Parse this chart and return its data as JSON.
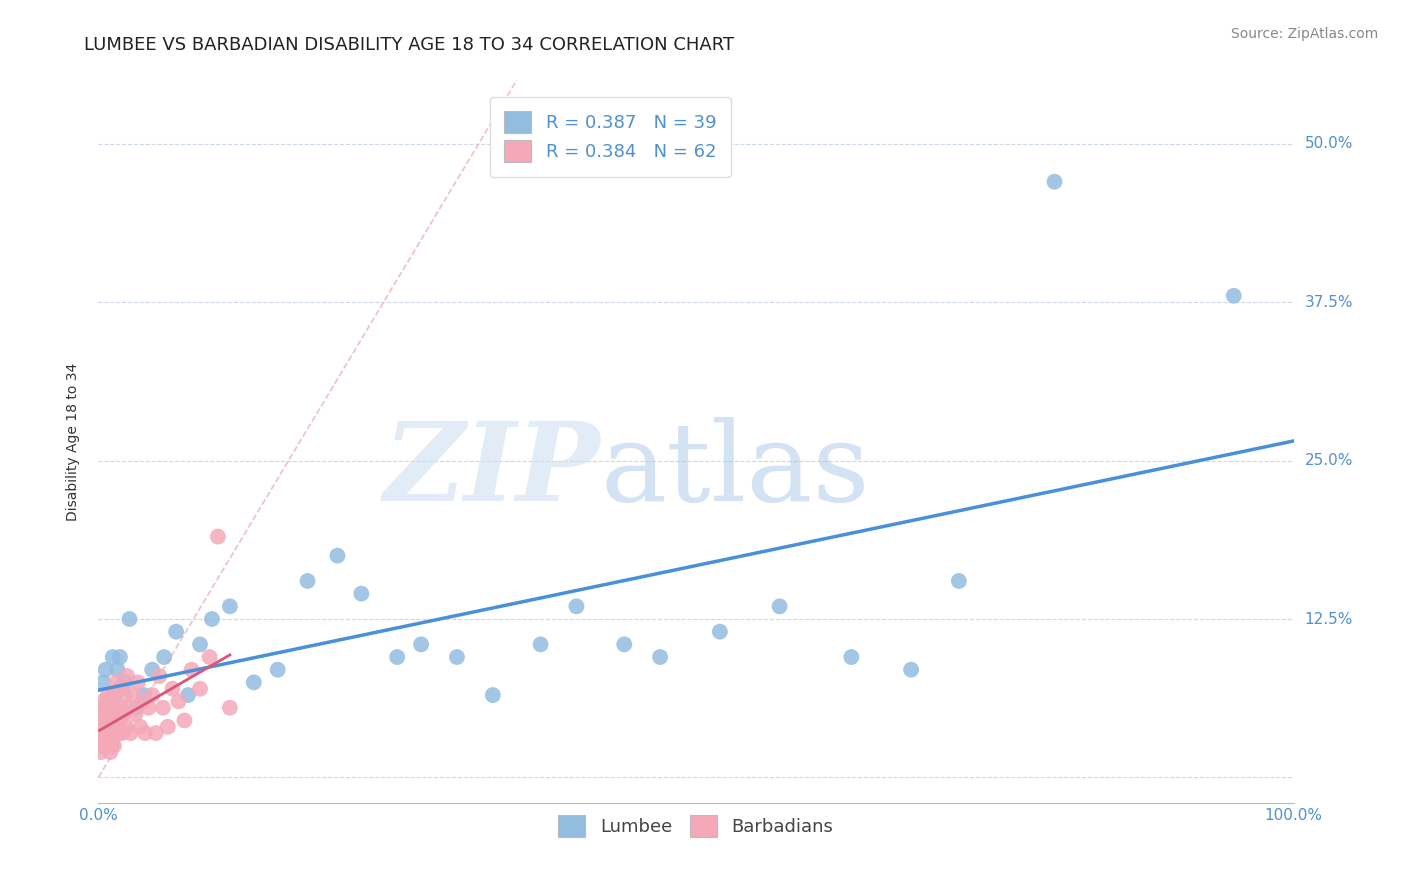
{
  "title": "LUMBEE VS BARBADIAN DISABILITY AGE 18 TO 34 CORRELATION CHART",
  "source": "Source: ZipAtlas.com",
  "ylabel": "Disability Age 18 to 34",
  "xlim": [
    0.0,
    1.0
  ],
  "ylim": [
    -0.02,
    0.55
  ],
  "ytick_positions": [
    0.0,
    0.125,
    0.25,
    0.375,
    0.5
  ],
  "yticklabels_right": [
    "",
    "12.5%",
    "25.0%",
    "37.5%",
    "50.0%"
  ],
  "lumbee_R": "0.387",
  "lumbee_N": "39",
  "barbadian_R": "0.384",
  "barbadian_N": "62",
  "lumbee_color": "#92bce0",
  "barbadian_color": "#f4a8b8",
  "lumbee_line_color": "#4a90d9",
  "barbadian_line_color": "#d9567a",
  "diagonal_color": "#e8b0c0",
  "lumbee_points_x": [
    0.004,
    0.006,
    0.008,
    0.01,
    0.012,
    0.014,
    0.016,
    0.018,
    0.022,
    0.026,
    0.032,
    0.038,
    0.045,
    0.055,
    0.065,
    0.075,
    0.085,
    0.095,
    0.11,
    0.13,
    0.15,
    0.175,
    0.2,
    0.22,
    0.25,
    0.27,
    0.3,
    0.33,
    0.37,
    0.4,
    0.44,
    0.47,
    0.52,
    0.57,
    0.63,
    0.68,
    0.72,
    0.8,
    0.95
  ],
  "lumbee_points_y": [
    0.075,
    0.085,
    0.055,
    0.045,
    0.095,
    0.065,
    0.085,
    0.095,
    0.075,
    0.125,
    0.055,
    0.065,
    0.085,
    0.095,
    0.115,
    0.065,
    0.105,
    0.125,
    0.135,
    0.075,
    0.085,
    0.155,
    0.175,
    0.145,
    0.095,
    0.105,
    0.095,
    0.065,
    0.105,
    0.135,
    0.105,
    0.095,
    0.115,
    0.135,
    0.095,
    0.085,
    0.155,
    0.47,
    0.38
  ],
  "barbadian_points_x": [
    0.001,
    0.001,
    0.002,
    0.002,
    0.002,
    0.003,
    0.003,
    0.004,
    0.004,
    0.005,
    0.005,
    0.006,
    0.006,
    0.007,
    0.007,
    0.008,
    0.008,
    0.009,
    0.009,
    0.01,
    0.01,
    0.011,
    0.011,
    0.012,
    0.012,
    0.013,
    0.013,
    0.014,
    0.015,
    0.015,
    0.016,
    0.017,
    0.018,
    0.018,
    0.019,
    0.02,
    0.021,
    0.022,
    0.023,
    0.024,
    0.025,
    0.027,
    0.029,
    0.031,
    0.033,
    0.035,
    0.037,
    0.039,
    0.042,
    0.045,
    0.048,
    0.051,
    0.054,
    0.058,
    0.062,
    0.067,
    0.072,
    0.078,
    0.085,
    0.093,
    0.1,
    0.11
  ],
  "barbadian_points_y": [
    0.025,
    0.04,
    0.02,
    0.035,
    0.055,
    0.025,
    0.045,
    0.03,
    0.06,
    0.025,
    0.045,
    0.03,
    0.055,
    0.025,
    0.05,
    0.035,
    0.065,
    0.025,
    0.06,
    0.02,
    0.05,
    0.025,
    0.055,
    0.035,
    0.065,
    0.025,
    0.055,
    0.04,
    0.035,
    0.075,
    0.05,
    0.035,
    0.045,
    0.07,
    0.055,
    0.035,
    0.05,
    0.065,
    0.04,
    0.08,
    0.055,
    0.035,
    0.065,
    0.05,
    0.075,
    0.04,
    0.06,
    0.035,
    0.055,
    0.065,
    0.035,
    0.08,
    0.055,
    0.04,
    0.07,
    0.06,
    0.045,
    0.085,
    0.07,
    0.095,
    0.19,
    0.055
  ],
  "grid_color": "#ccd8e8",
  "bg_color": "#ffffff",
  "title_fontsize": 13,
  "axis_label_fontsize": 10,
  "tick_fontsize": 11,
  "legend_fontsize": 13,
  "source_fontsize": 10,
  "tick_color": "#5090d0"
}
